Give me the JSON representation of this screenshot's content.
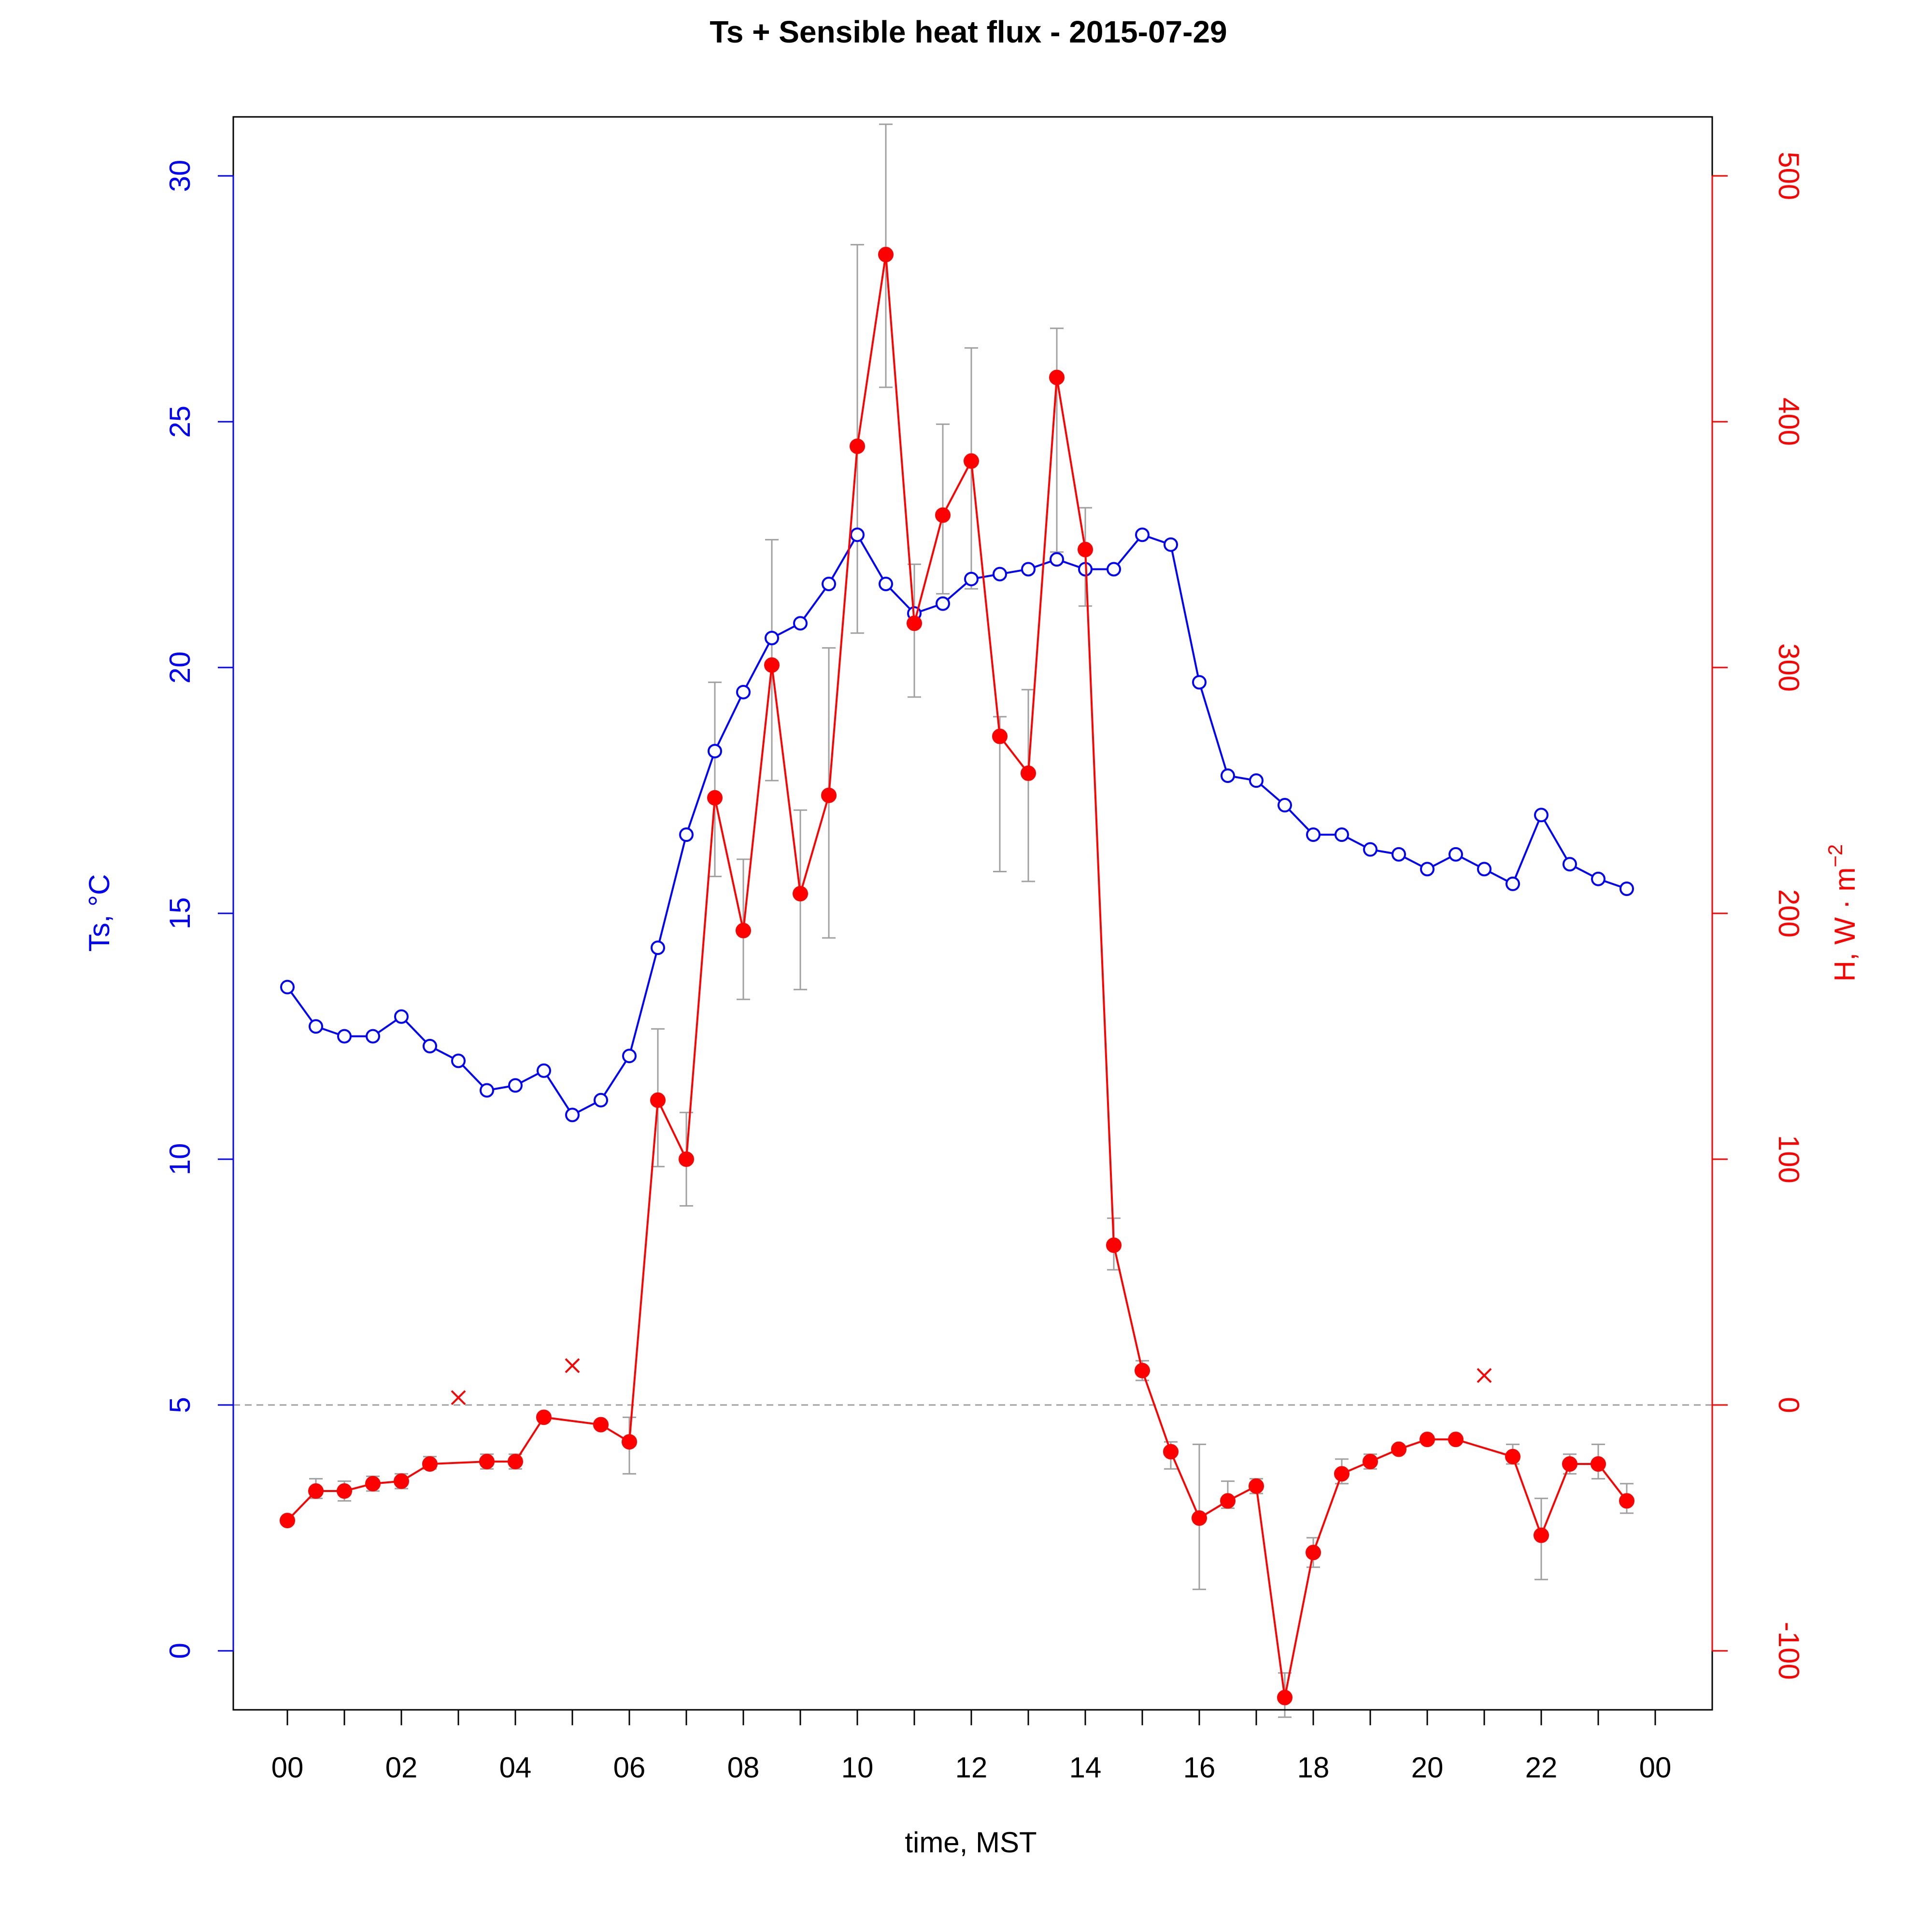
{
  "chart_data": {
    "type": "line",
    "title": "Ts + Sensible heat flux -  2015-07-29",
    "xlabel": "time, MST",
    "ylabel_left": "Ts, °C",
    "ylabel_right_prefix": "H, W",
    "ylabel_right_unit_base": "m",
    "ylabel_right_unit_exp": "−2",
    "x_ticks": [
      "00",
      "02",
      "04",
      "06",
      "08",
      "10",
      "12",
      "14",
      "16",
      "18",
      "20",
      "22",
      "00"
    ],
    "x_range_hours": [
      0,
      24
    ],
    "y_left_ticks": [
      "0",
      "5",
      "10",
      "15",
      "20",
      "25",
      "30"
    ],
    "y_left_range": [
      -1.2,
      31.2
    ],
    "y_right_ticks": [
      "-100",
      "0",
      "100",
      "200",
      "300",
      "400",
      "500"
    ],
    "y_right_range": [
      -124,
      524
    ],
    "zero_line_right": 0,
    "colors": {
      "ts": "#0000ff",
      "h": "#ff0000",
      "errorbar": "#a0a0a0",
      "zero_line": "#a0a0a0",
      "axes": "#000000"
    },
    "series": [
      {
        "name": "Ts",
        "axis": "left",
        "marker": "open-circle",
        "x": [
          0,
          0.5,
          1,
          1.5,
          2,
          2.5,
          3,
          3.5,
          4,
          4.5,
          5,
          5.5,
          6,
          6.5,
          7,
          7.5,
          8,
          8.5,
          9,
          9.5,
          10,
          10.5,
          11,
          11.5,
          12,
          12.5,
          13,
          13.5,
          14,
          14.5,
          15,
          15.5,
          16,
          16.5,
          17,
          17.5,
          18,
          18.5,
          19,
          19.5,
          20,
          20.5,
          21,
          21.5,
          22,
          22.5,
          23,
          23.5
        ],
        "values": [
          13.5,
          12.7,
          12.5,
          12.5,
          12.9,
          12.3,
          12.0,
          11.4,
          11.5,
          11.8,
          10.9,
          11.2,
          12.1,
          14.3,
          16.6,
          18.3,
          19.5,
          20.6,
          20.9,
          21.7,
          22.7,
          21.7,
          21.1,
          21.3,
          21.8,
          21.9,
          22.0,
          22.2,
          22.0,
          22.0,
          22.7,
          22.5,
          19.7,
          17.8,
          17.7,
          17.2,
          16.6,
          16.6,
          16.3,
          16.2,
          15.9,
          16.2,
          15.9,
          15.6,
          17.0,
          16.0,
          15.7,
          15.5
        ]
      },
      {
        "name": "H",
        "axis": "right",
        "marker": "filled-circle",
        "x": [
          0,
          0.5,
          1,
          1.5,
          2,
          2.5,
          3.5,
          4,
          4.5,
          5.5,
          6,
          6.5,
          7,
          7.5,
          8,
          8.5,
          9,
          9.5,
          10,
          10.5,
          11,
          11.5,
          12,
          12.5,
          13,
          13.5,
          14,
          14.5,
          15,
          15.5,
          16,
          16.5,
          17,
          17.5,
          18,
          18.5,
          19,
          19.5,
          20,
          20.5,
          21.5,
          22,
          22.5,
          23,
          23.5
        ],
        "values": [
          -47,
          -35,
          -35,
          -32,
          -31,
          -24,
          -23,
          -23,
          -5,
          -8,
          -15,
          124,
          100,
          247,
          193,
          301,
          208,
          248,
          390,
          468,
          318,
          362,
          384,
          272,
          257,
          418,
          348,
          65,
          14,
          -19,
          -46,
          -39,
          -33,
          -119,
          -60,
          -28,
          -23,
          -18,
          -14,
          -14,
          -21,
          -53,
          -24,
          -24,
          -39
        ],
        "err_low": [
          null,
          -38,
          -39,
          -35,
          -34,
          -26,
          -26,
          -26,
          null,
          null,
          -28,
          97,
          81,
          215,
          165,
          254,
          169,
          190,
          314,
          414,
          288,
          330,
          332,
          217,
          213,
          347,
          325,
          55,
          10,
          -26,
          -75,
          -42,
          -36,
          -127,
          -66,
          -32,
          -26,
          null,
          null,
          null,
          -24,
          -71,
          -28,
          -30,
          -44
        ],
        "err_high": [
          null,
          -30,
          -31,
          -29,
          -28,
          -21,
          -20,
          -20,
          null,
          null,
          -5,
          153,
          119,
          294,
          222,
          352,
          242,
          308,
          472,
          521,
          342,
          399,
          430,
          280,
          291,
          438,
          365,
          76,
          18,
          -15,
          -16,
          -31,
          -30,
          -109,
          -54,
          -22,
          -20,
          null,
          null,
          null,
          -16,
          -38,
          -20,
          -16,
          -32
        ]
      },
      {
        "name": "H flagged",
        "axis": "right",
        "marker": "x",
        "x": [
          3,
          5,
          21
        ],
        "values": [
          3,
          16,
          12
        ]
      }
    ]
  }
}
